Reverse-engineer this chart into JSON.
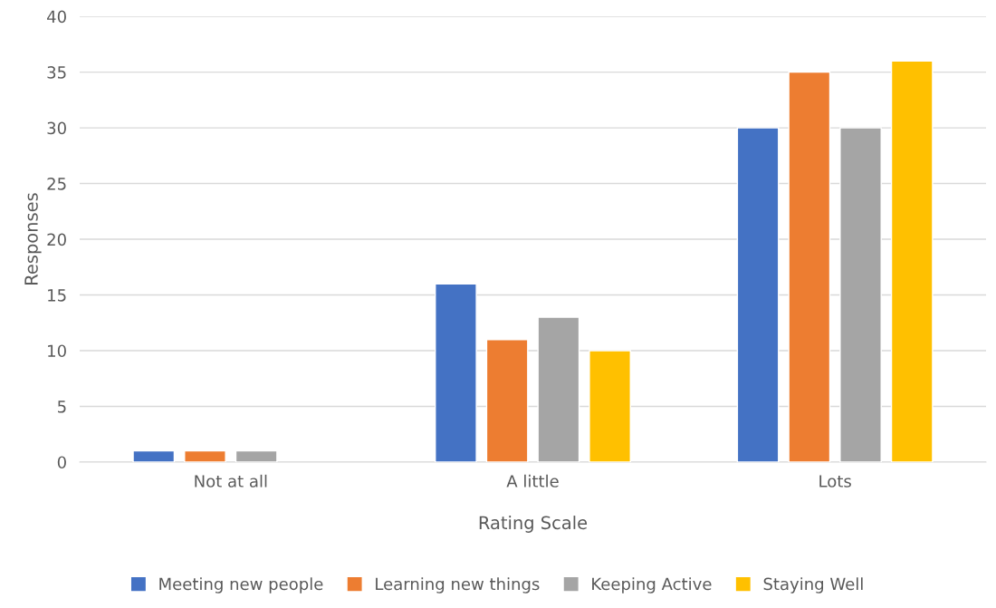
{
  "chart_data": {
    "type": "bar",
    "xlabel": "Rating Scale",
    "ylabel": "Responses",
    "categories": [
      "Not at all",
      "A little",
      "Lots"
    ],
    "series": [
      {
        "name": "Meeting new people",
        "color": "#4472c4",
        "values": [
          1,
          16,
          30
        ]
      },
      {
        "name": "Learning new things",
        "color": "#ed7d31",
        "values": [
          1,
          11,
          35
        ]
      },
      {
        "name": "Keeping Active",
        "color": "#a5a5a5",
        "values": [
          1,
          13,
          30
        ]
      },
      {
        "name": "Staying Well",
        "color": "#ffc000",
        "values": [
          null,
          10,
          36
        ]
      }
    ],
    "ylim": [
      0,
      40
    ],
    "yticks": [
      0,
      5,
      10,
      15,
      20,
      25,
      30,
      35,
      40
    ],
    "grid": "y",
    "legend": "bottom"
  }
}
